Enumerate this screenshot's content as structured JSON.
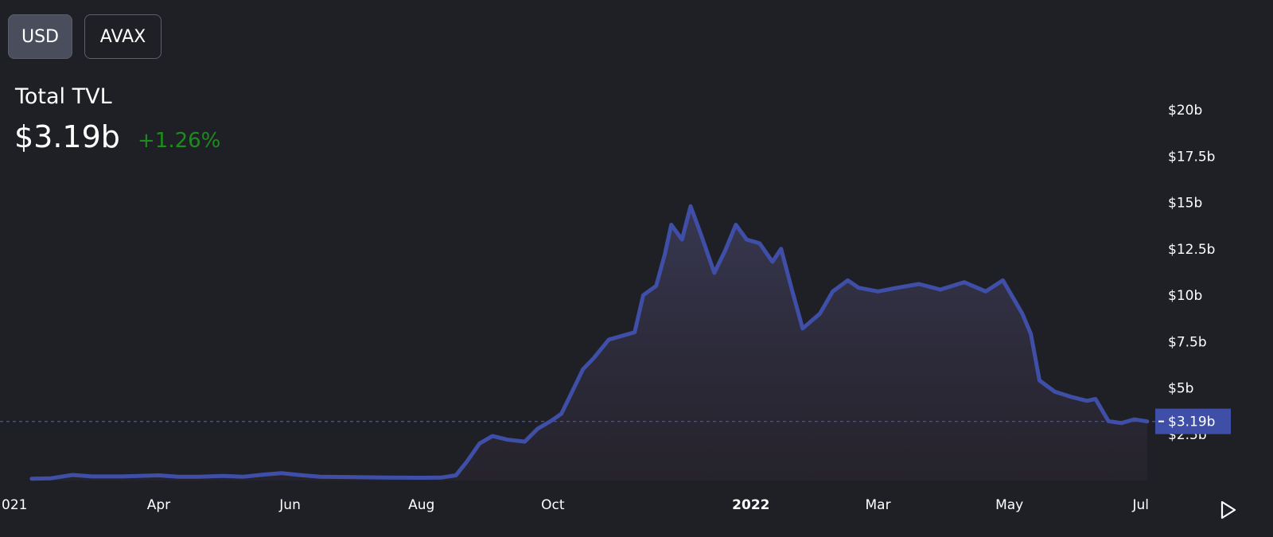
{
  "currency_toggle": {
    "usd_label": "USD",
    "avax_label": "AVAX",
    "selected": "USD"
  },
  "summary": {
    "label": "Total TVL",
    "value": "$3.19b",
    "change": "+1.26%"
  },
  "colors": {
    "background": "#1f2026",
    "line": "#3f4fa8",
    "change_positive": "#1f8a1f",
    "price_tag": "#3f4fa8"
  },
  "play_icon": "play-triangle-icon",
  "chart_data": {
    "type": "area",
    "title": "",
    "xlabel": "",
    "ylabel": "",
    "ylim": [
      0,
      20
    ],
    "y_ticks": [
      "$20b",
      "$17.5b",
      "$15b",
      "$12.5b",
      "$10b",
      "$7.5b",
      "$5b",
      "$2.5b"
    ],
    "y_tick_values": [
      20,
      17.5,
      15,
      12.5,
      10,
      7.5,
      5,
      2.5
    ],
    "x_ticks": [
      {
        "label": "021",
        "date": "2021-02-01"
      },
      {
        "label": "Apr",
        "date": "2021-04-01"
      },
      {
        "label": "Jun",
        "date": "2021-06-01"
      },
      {
        "label": "Aug",
        "date": "2021-08-01"
      },
      {
        "label": "Oct",
        "date": "2021-10-01"
      },
      {
        "label": "2022",
        "date": "2022-01-01",
        "bold": true
      },
      {
        "label": "Mar",
        "date": "2022-03-01"
      },
      {
        "label": "May",
        "date": "2022-05-01"
      },
      {
        "label": "Jul",
        "date": "2022-07-01"
      }
    ],
    "current_value_label": "$3.19b",
    "current_value": 3.19,
    "series": [
      {
        "values": [
          [
            "2021-02-01",
            0.1
          ],
          [
            "2021-02-10",
            0.12
          ],
          [
            "2021-02-20",
            0.3
          ],
          [
            "2021-03-01",
            0.22
          ],
          [
            "2021-03-15",
            0.22
          ],
          [
            "2021-04-01",
            0.28
          ],
          [
            "2021-04-10",
            0.2
          ],
          [
            "2021-04-20",
            0.2
          ],
          [
            "2021-05-01",
            0.25
          ],
          [
            "2021-05-10",
            0.2
          ],
          [
            "2021-05-20",
            0.32
          ],
          [
            "2021-05-28",
            0.4
          ],
          [
            "2021-06-05",
            0.3
          ],
          [
            "2021-06-15",
            0.2
          ],
          [
            "2021-07-01",
            0.18
          ],
          [
            "2021-07-15",
            0.16
          ],
          [
            "2021-08-01",
            0.15
          ],
          [
            "2021-08-10",
            0.16
          ],
          [
            "2021-08-17",
            0.28
          ],
          [
            "2021-08-22",
            1.0
          ],
          [
            "2021-08-28",
            2.0
          ],
          [
            "2021-09-03",
            2.4
          ],
          [
            "2021-09-10",
            2.2
          ],
          [
            "2021-09-18",
            2.1
          ],
          [
            "2021-09-24",
            2.8
          ],
          [
            "2021-09-30",
            3.2
          ],
          [
            "2021-10-05",
            3.6
          ],
          [
            "2021-10-10",
            4.8
          ],
          [
            "2021-10-15",
            6.0
          ],
          [
            "2021-10-20",
            6.6
          ],
          [
            "2021-10-27",
            7.6
          ],
          [
            "2021-11-02",
            7.8
          ],
          [
            "2021-11-08",
            8.0
          ],
          [
            "2021-11-12",
            10.0
          ],
          [
            "2021-11-18",
            10.5
          ],
          [
            "2021-11-22",
            12.2
          ],
          [
            "2021-11-25",
            13.8
          ],
          [
            "2021-11-30",
            13.0
          ],
          [
            "2021-12-04",
            14.8
          ],
          [
            "2021-12-09",
            13.2
          ],
          [
            "2021-12-15",
            11.2
          ],
          [
            "2021-12-20",
            12.4
          ],
          [
            "2021-12-25",
            13.8
          ],
          [
            "2021-12-30",
            13.0
          ],
          [
            "2022-01-05",
            12.8
          ],
          [
            "2022-01-11",
            11.8
          ],
          [
            "2022-01-15",
            12.5
          ],
          [
            "2022-01-20",
            10.3
          ],
          [
            "2022-01-25",
            8.2
          ],
          [
            "2022-02-02",
            9.0
          ],
          [
            "2022-02-08",
            10.2
          ],
          [
            "2022-02-15",
            10.8
          ],
          [
            "2022-02-20",
            10.4
          ],
          [
            "2022-03-01",
            10.2
          ],
          [
            "2022-03-10",
            10.4
          ],
          [
            "2022-03-20",
            10.6
          ],
          [
            "2022-03-30",
            10.3
          ],
          [
            "2022-04-10",
            10.7
          ],
          [
            "2022-04-20",
            10.2
          ],
          [
            "2022-04-28",
            10.8
          ],
          [
            "2022-05-02",
            10.0
          ],
          [
            "2022-05-07",
            9.0
          ],
          [
            "2022-05-11",
            7.9
          ],
          [
            "2022-05-15",
            5.4
          ],
          [
            "2022-05-22",
            4.8
          ],
          [
            "2022-05-30",
            4.5
          ],
          [
            "2022-06-06",
            4.3
          ],
          [
            "2022-06-10",
            4.4
          ],
          [
            "2022-06-16",
            3.2
          ],
          [
            "2022-06-22",
            3.1
          ],
          [
            "2022-06-28",
            3.3
          ],
          [
            "2022-07-04",
            3.19
          ]
        ]
      }
    ]
  }
}
